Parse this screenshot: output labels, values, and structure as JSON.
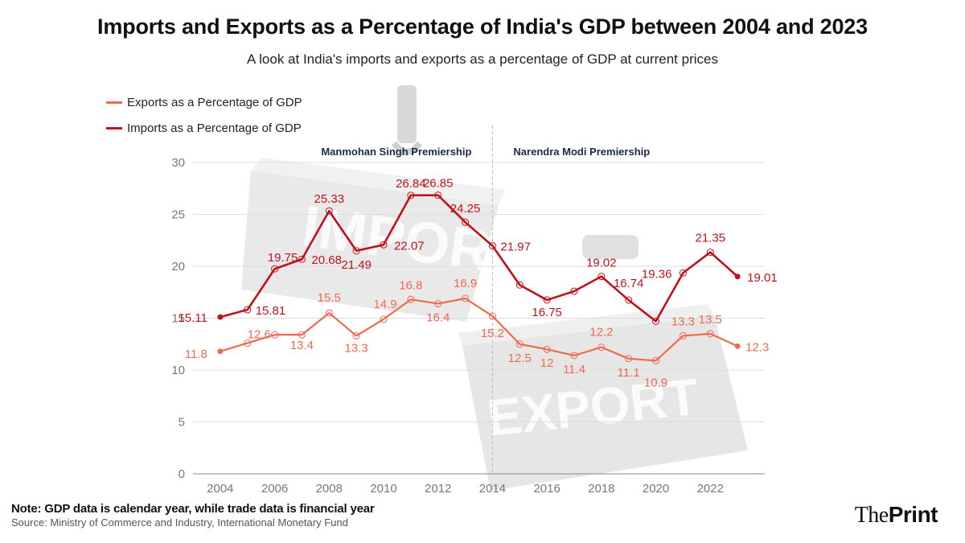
{
  "chart_data": {
    "type": "line",
    "title": "Imports and Exports as a Percentage of India's GDP between 2004 and 2023",
    "subtitle": "A look at India's imports and exports as a percentage of GDP at current prices",
    "x": [
      2004,
      2005,
      2006,
      2007,
      2008,
      2009,
      2010,
      2011,
      2012,
      2013,
      2014,
      2015,
      2016,
      2017,
      2018,
      2019,
      2020,
      2021,
      2022,
      2023
    ],
    "xticks": [
      "2004",
      "2006",
      "2008",
      "2010",
      "2012",
      "2014",
      "2016",
      "2018",
      "2020",
      "2022"
    ],
    "yticks": [
      "0",
      "5",
      "10",
      "15",
      "20",
      "25",
      "30"
    ],
    "ylim": [
      0,
      30
    ],
    "xlim": [
      2003,
      2024
    ],
    "series": [
      {
        "name": "Exports as a Percentage of GDP",
        "color": "#ee6a50",
        "values": [
          11.8,
          12.6,
          13.4,
          13.4,
          15.5,
          13.3,
          14.9,
          16.8,
          16.4,
          16.9,
          15.2,
          12.5,
          12.0,
          11.4,
          12.2,
          11.1,
          10.9,
          13.3,
          13.5,
          12.3
        ],
        "labels": [
          "11.8",
          "12.6",
          "",
          "13.4",
          "15.5",
          "13.3",
          "14.9",
          "16.8",
          "16.4",
          "16.9",
          "15.2",
          "12.5",
          "12",
          "11.4",
          "12.2",
          "11.1",
          "10.9",
          "13.3",
          "13.5",
          "12.3"
        ]
      },
      {
        "name": "Imports as a Percentage of GDP",
        "color": "#c0121c",
        "values": [
          15.11,
          15.81,
          19.75,
          20.68,
          25.33,
          21.49,
          22.07,
          26.84,
          26.85,
          24.25,
          21.97,
          18.2,
          16.75,
          17.6,
          19.02,
          16.74,
          14.7,
          19.36,
          21.35,
          19.01
        ],
        "labels": [
          "15.11",
          "15.81",
          "19.75",
          "20.68",
          "25.33",
          "21.49",
          "22.07",
          "26.84",
          "26.85",
          "24.25",
          "21.97",
          "",
          "16.75",
          "",
          "19.02",
          "16.74",
          "",
          "19.36",
          "21.35",
          "19.01"
        ]
      }
    ],
    "annotations": [
      "Manmohan Singh Premiership",
      "Narendra Modi Premiership"
    ],
    "divider_x": 2014,
    "grid": true,
    "legend_position": "top-left"
  },
  "footer": {
    "note": "Note: GDP data is calendar year, while trade data is financial year",
    "source": "Source: Ministry of Commerce and Industry, International Monetary Fund",
    "brand_light": "The",
    "brand_bold": "Print"
  },
  "watermark_words": [
    "IMPORT",
    "EXPORT"
  ]
}
